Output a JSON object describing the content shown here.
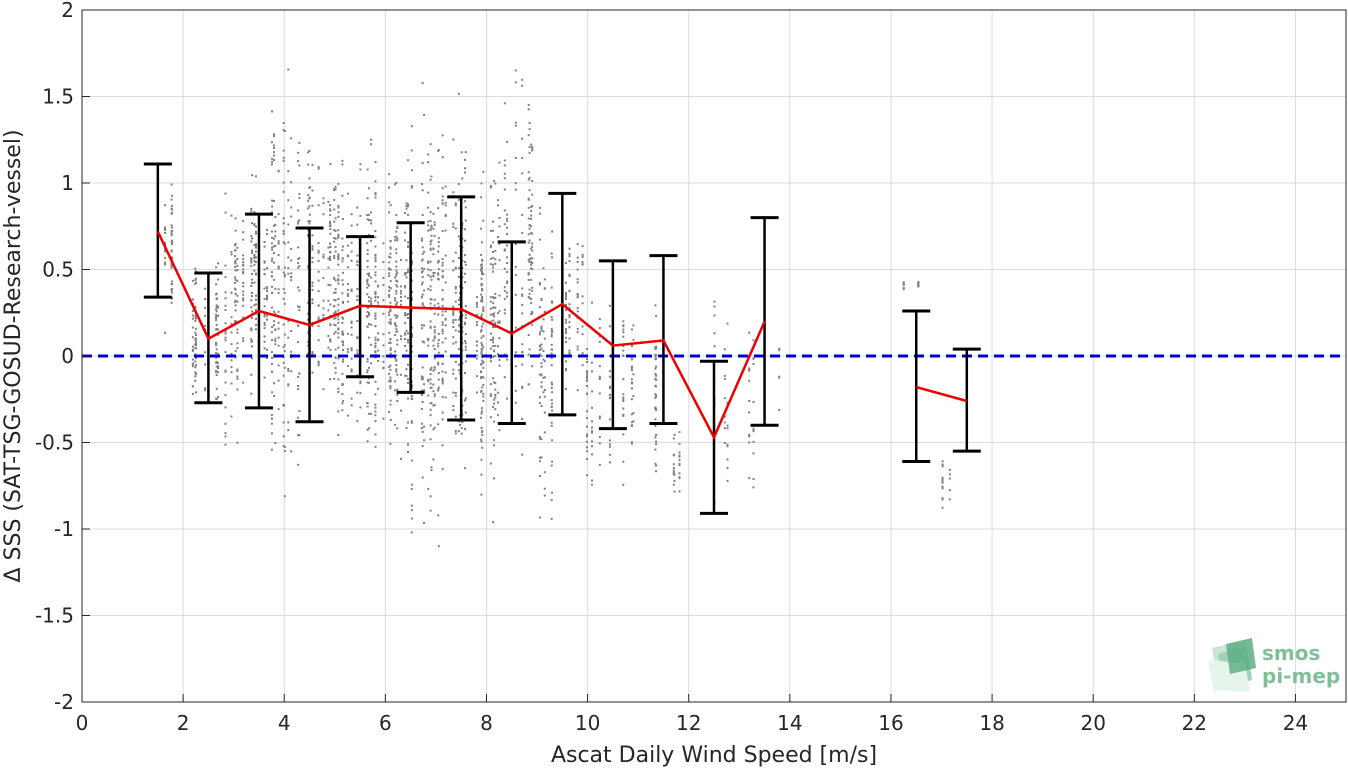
{
  "chart_data": {
    "type": "scatter",
    "xlabel": "Ascat Daily Wind Speed [m/s]",
    "ylabel": "Δ SSS (SAT-TSG-GOSUD-Research-vessel)",
    "xlim": [
      0,
      25
    ],
    "ylim": [
      -2,
      2
    ],
    "xticks": [
      0,
      2,
      4,
      6,
      8,
      10,
      12,
      14,
      16,
      18,
      20,
      22,
      24
    ],
    "yticks": [
      -2,
      -1.5,
      -1,
      -0.5,
      0,
      0.5,
      1,
      1.5,
      2
    ],
    "grid": true,
    "reference_line": {
      "y": 0,
      "color": "#0000cc",
      "style": "dashed"
    },
    "mean_series": {
      "color": "#ee0000",
      "segments": [
        {
          "x": [
            1.5,
            2.5,
            3.5,
            4.5,
            5.5,
            6.5,
            7.5,
            8.5,
            9.5,
            10.5,
            11.5,
            12.5,
            13.5
          ],
          "y": [
            0.72,
            0.1,
            0.26,
            0.18,
            0.29,
            0.28,
            0.27,
            0.13,
            0.3,
            0.06,
            0.09,
            -0.47,
            0.2
          ]
        },
        {
          "x": [
            16.5,
            17.5
          ],
          "y": [
            -0.18,
            -0.26
          ]
        }
      ]
    },
    "error_bars": {
      "color": "#000000",
      "x": [
        1.5,
        2.5,
        3.5,
        4.5,
        5.5,
        6.5,
        7.5,
        8.5,
        9.5,
        10.5,
        11.5,
        12.5,
        13.5,
        16.5,
        17.5
      ],
      "lower": [
        0.34,
        -0.27,
        -0.3,
        -0.38,
        -0.12,
        -0.21,
        -0.37,
        -0.39,
        -0.34,
        -0.42,
        -0.39,
        -0.91,
        -0.4,
        -0.61,
        -0.55
      ],
      "upper": [
        1.11,
        0.48,
        0.82,
        0.74,
        0.69,
        0.77,
        0.92,
        0.66,
        0.94,
        0.55,
        0.58,
        -0.03,
        0.8,
        0.26,
        0.04
      ]
    },
    "scatter_points": {
      "color": "#808080",
      "clusters": [
        {
          "x": [
            1.5,
            1.9
          ],
          "y": [
            0.0,
            1.2
          ],
          "n": 60
        },
        {
          "x": [
            2.1,
            2.7
          ],
          "y": [
            -0.45,
            0.7
          ],
          "n": 120
        },
        {
          "x": [
            2.7,
            3.1
          ],
          "y": [
            -0.75,
            1.1
          ],
          "n": 60
        },
        {
          "x": [
            3.0,
            3.7
          ],
          "y": [
            -0.35,
            1.2
          ],
          "n": 160
        },
        {
          "x": [
            3.7,
            4.3
          ],
          "y": [
            -1.1,
            1.9
          ],
          "n": 200
        },
        {
          "x": [
            4.3,
            5.0
          ],
          "y": [
            -0.6,
            1.45
          ],
          "n": 200
        },
        {
          "x": [
            5.0,
            5.7
          ],
          "y": [
            -0.8,
            1.4
          ],
          "n": 220
        },
        {
          "x": [
            5.7,
            6.4
          ],
          "y": [
            -0.75,
            1.3
          ],
          "n": 240
        },
        {
          "x": [
            6.4,
            7.1
          ],
          "y": [
            -1.25,
            1.7
          ],
          "n": 260
        },
        {
          "x": [
            7.1,
            7.6
          ],
          "y": [
            -0.9,
            1.65
          ],
          "n": 200
        },
        {
          "x": [
            7.6,
            8.3
          ],
          "y": [
            -1.05,
            1.3
          ],
          "n": 200
        },
        {
          "x": [
            8.2,
            8.9
          ],
          "y": [
            -0.7,
            1.9
          ],
          "n": 160
        },
        {
          "x": [
            8.9,
            9.3
          ],
          "y": [
            -1.3,
            1.2
          ],
          "n": 100
        },
        {
          "x": [
            9.3,
            9.9
          ],
          "y": [
            -0.3,
            0.9
          ],
          "n": 90
        },
        {
          "x": [
            9.9,
            10.7
          ],
          "y": [
            -0.95,
            0.5
          ],
          "n": 90
        },
        {
          "x": [
            10.8,
            11.4
          ],
          "y": [
            -0.95,
            0.55
          ],
          "n": 70
        },
        {
          "x": [
            11.4,
            12.0
          ],
          "y": [
            -0.9,
            -0.3
          ],
          "n": 25
        },
        {
          "x": [
            12.4,
            13.0
          ],
          "y": [
            -1.0,
            0.7
          ],
          "n": 30
        },
        {
          "x": [
            13.0,
            13.8
          ],
          "y": [
            -1.0,
            0.55
          ],
          "n": 30
        },
        {
          "x": [
            16.2,
            16.9
          ],
          "y": [
            0.38,
            0.45
          ],
          "n": 14
        },
        {
          "x": [
            17.0,
            17.4
          ],
          "y": [
            -1.0,
            -0.5
          ],
          "n": 18
        }
      ]
    }
  },
  "logo": {
    "line1": "smos",
    "line2": "pi-mep"
  }
}
